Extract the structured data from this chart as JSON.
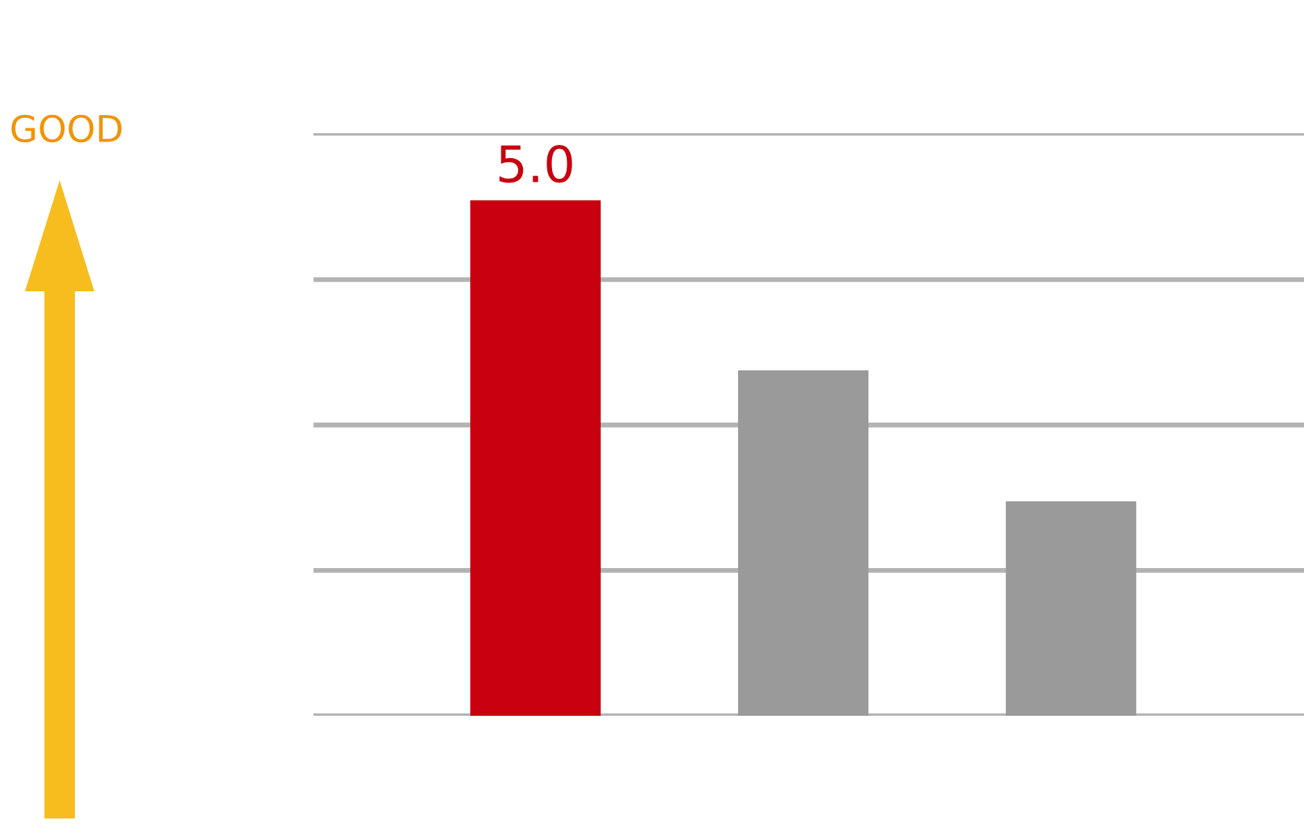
{
  "chart_data": {
    "type": "bar",
    "categories": [
      null,
      null,
      null
    ],
    "values": [
      5.0,
      3.35,
      2.08
    ],
    "colors": [
      "#c8000f",
      "#9a9a9a",
      "#9a9a9a"
    ],
    "value_labels": [
      "5.0",
      null,
      null
    ],
    "ylim": [
      0,
      5.65
    ],
    "yticks": [
      {
        "value": 0,
        "label": null
      },
      {
        "value": 1.41,
        "label": null
      },
      {
        "value": 2.82,
        "label": null
      },
      {
        "value": 4.23,
        "label": null
      },
      {
        "value": 5.65,
        "label": null
      }
    ],
    "grid": "y",
    "annotations": [
      "GOOD"
    ]
  }
}
